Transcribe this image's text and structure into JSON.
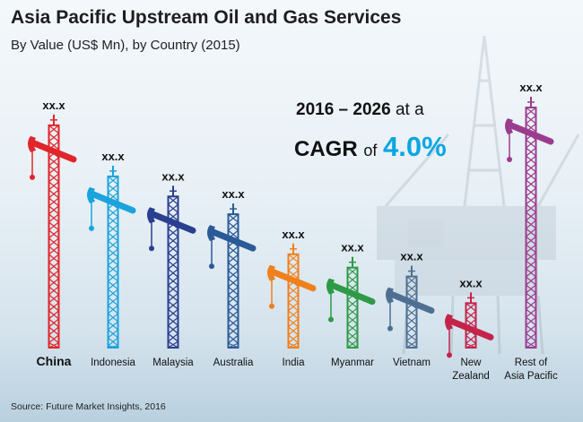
{
  "header": {
    "title": "Asia Pacific Upstream Oil and Gas Services",
    "subtitle": "By Value (US$ Mn), by Country (2015)"
  },
  "cagr": {
    "period": "2016 – 2026",
    "at_a": "at a",
    "label": "CAGR",
    "of": "of",
    "value": "4.0%",
    "value_color": "#0aa6e0"
  },
  "source": "Source: Future Market Insights, 2016",
  "chart_data": {
    "type": "bar",
    "bar_style": "pump-jack derricks",
    "title": "Asia Pacific Upstream Oil and Gas Services",
    "subtitle": "By Value (US$ Mn), by Country (2015)",
    "categories": [
      "China",
      "Indonesia",
      "Malaysia",
      "Australia",
      "India",
      "Myanmar",
      "Vietnam",
      "New Zealand",
      "Rest of Asia Pacific"
    ],
    "category_lines": [
      [
        "China"
      ],
      [
        "Indonesia"
      ],
      [
        "Malaysia"
      ],
      [
        "Australia"
      ],
      [
        "India"
      ],
      [
        "Myanmar"
      ],
      [
        "Vietnam"
      ],
      [
        "New",
        "Zealand"
      ],
      [
        "Rest of",
        "Asia Pacific"
      ]
    ],
    "bold_categories": [
      "China"
    ],
    "data_labels": [
      "xx.x",
      "xx.x",
      "xx.x",
      "xx.x",
      "xx.x",
      "xx.x",
      "xx.x",
      "xx.x",
      "xx.x"
    ],
    "values": [
      100,
      77,
      68,
      60,
      42,
      36,
      32,
      20,
      108
    ],
    "values_note": "relative heights, values not disclosed",
    "colors": [
      "#e0262b",
      "#1aa3dc",
      "#2a3f8f",
      "#2a5a97",
      "#f0801c",
      "#2e9a46",
      "#4f6f92",
      "#c4244a",
      "#9b3d8e"
    ],
    "grid": false,
    "legend": "none"
  }
}
